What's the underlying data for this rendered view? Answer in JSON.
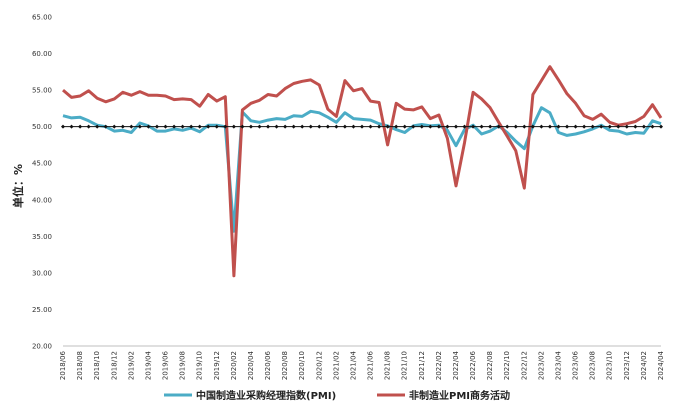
{
  "chart_data": {
    "type": "line",
    "ylabel": "单位：%",
    "ylim": [
      20,
      65
    ],
    "yticks": [
      "20.00",
      "25.00",
      "30.00",
      "35.00",
      "40.00",
      "45.00",
      "50.00",
      "55.00",
      "60.00",
      "65.00"
    ],
    "x": [
      "2018/06",
      "2018/07",
      "2018/08",
      "2018/09",
      "2018/10",
      "2018/11",
      "2018/12",
      "2019/01",
      "2019/02",
      "2019/03",
      "2019/04",
      "2019/05",
      "2019/06",
      "2019/07",
      "2019/08",
      "2019/09",
      "2019/10",
      "2019/11",
      "2019/12",
      "2020/01",
      "2020/02",
      "2020/03",
      "2020/04",
      "2020/05",
      "2020/06",
      "2020/07",
      "2020/08",
      "2020/09",
      "2020/10",
      "2020/11",
      "2020/12",
      "2021/01",
      "2021/02",
      "2021/03",
      "2021/04",
      "2021/05",
      "2021/06",
      "2021/07",
      "2021/08",
      "2021/09",
      "2021/10",
      "2021/11",
      "2021/12",
      "2022/01",
      "2022/02",
      "2022/03",
      "2022/04",
      "2022/05",
      "2022/06",
      "2022/07",
      "2022/08",
      "2022/09",
      "2022/10",
      "2022/11",
      "2022/12",
      "2023/01",
      "2023/02",
      "2023/03",
      "2023/04",
      "2023/05",
      "2023/06",
      "2023/07",
      "2023/08",
      "2023/09",
      "2023/10",
      "2023/11",
      "2023/12",
      "2024/01",
      "2024/02",
      "2024/03",
      "2024/04"
    ],
    "xtick_labels": [
      "2018/06",
      "2018/08",
      "2018/10",
      "2018/12",
      "2019/02",
      "2019/04",
      "2019/06",
      "2019/08",
      "2019/10",
      "2019/12",
      "2020/02",
      "2020/04",
      "2020/06",
      "2020/08",
      "2020/10",
      "2020/12",
      "2021/02",
      "2021/04",
      "2021/06",
      "2021/08",
      "2021/10",
      "2021/12",
      "2022/02",
      "2022/04",
      "2022/06",
      "2022/08",
      "2022/10",
      "2022/12",
      "2023/02",
      "2023/04",
      "2023/06",
      "2023/08",
      "2023/10",
      "2023/12",
      "2024/02",
      "2024/04"
    ],
    "reference_line": 50,
    "series": [
      {
        "name": "中国制造业采购经理指数(PMI)",
        "color": "#4bacc6",
        "values": [
          51.5,
          51.2,
          51.3,
          50.8,
          50.2,
          50.0,
          49.4,
          49.5,
          49.2,
          50.5,
          50.1,
          49.4,
          49.4,
          49.7,
          49.5,
          49.8,
          49.3,
          50.2,
          50.2,
          50.0,
          35.7,
          52.0,
          50.8,
          50.6,
          50.9,
          51.1,
          51.0,
          51.5,
          51.4,
          52.1,
          51.9,
          51.3,
          50.6,
          51.9,
          51.1,
          51.0,
          50.9,
          50.4,
          50.1,
          49.6,
          49.2,
          50.1,
          50.3,
          50.1,
          50.2,
          49.5,
          47.4,
          49.6,
          50.2,
          49.0,
          49.4,
          50.1,
          49.2,
          48.0,
          47.0,
          50.1,
          52.6,
          51.9,
          49.2,
          48.8,
          49.0,
          49.3,
          49.7,
          50.2,
          49.5,
          49.4,
          49.0,
          49.2,
          49.1,
          50.8,
          50.4
        ]
      },
      {
        "name": "非制造业PMI商务活动",
        "color": "#c0504d",
        "values": [
          55.0,
          54.0,
          54.2,
          54.9,
          53.9,
          53.4,
          53.8,
          54.7,
          54.3,
          54.8,
          54.3,
          54.3,
          54.2,
          53.7,
          53.8,
          53.7,
          52.8,
          54.4,
          53.5,
          54.1,
          29.6,
          52.3,
          53.2,
          53.6,
          54.4,
          54.2,
          55.2,
          55.9,
          56.2,
          56.4,
          55.7,
          52.4,
          51.4,
          56.3,
          54.9,
          55.2,
          53.5,
          53.3,
          47.5,
          53.2,
          52.4,
          52.3,
          52.7,
          51.1,
          51.6,
          48.4,
          41.9,
          47.8,
          54.7,
          53.8,
          52.6,
          50.6,
          48.7,
          46.7,
          41.6,
          54.4,
          56.3,
          58.2,
          56.4,
          54.5,
          53.2,
          51.5,
          51.0,
          51.7,
          50.6,
          50.2,
          50.4,
          50.7,
          51.4,
          53.0,
          51.2
        ]
      }
    ]
  }
}
